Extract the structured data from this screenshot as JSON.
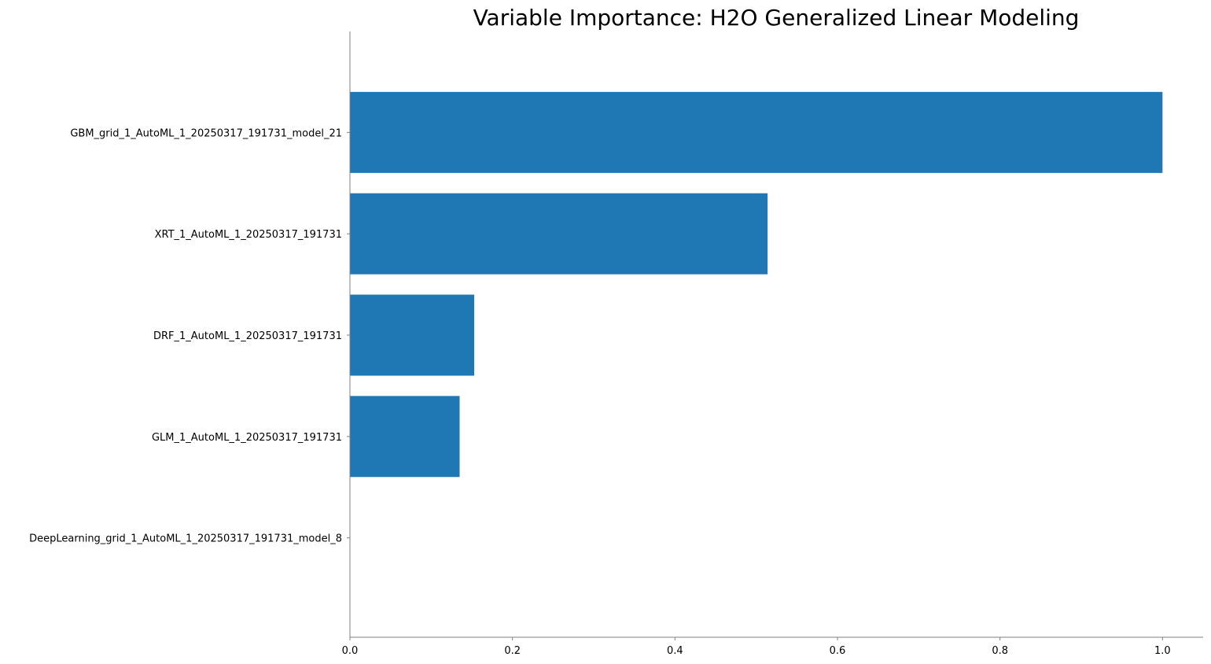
{
  "chart_data": {
    "type": "bar",
    "orientation": "horizontal",
    "title": "Variable Importance: H2O Generalized Linear Modeling",
    "xlabel": "",
    "ylabel": "",
    "categories": [
      "GBM_grid_1_AutoML_1_20250317_191731_model_21",
      "XRT_1_AutoML_1_20250317_191731",
      "DRF_1_AutoML_1_20250317_191731",
      "GLM_1_AutoML_1_20250317_191731",
      "DeepLearning_grid_1_AutoML_1_20250317_191731_model_8"
    ],
    "values": [
      1.0,
      0.514,
      0.153,
      0.135,
      0.0
    ],
    "xlim": [
      0,
      1.05
    ],
    "xticks": [
      0.0,
      0.2,
      0.4,
      0.6,
      0.8,
      1.0
    ],
    "xtick_labels": [
      "0.0",
      "0.2",
      "0.4",
      "0.6",
      "0.8",
      "1.0"
    ],
    "grid": false,
    "bar_color": "#1f77b4",
    "axis_color": "#808080"
  }
}
